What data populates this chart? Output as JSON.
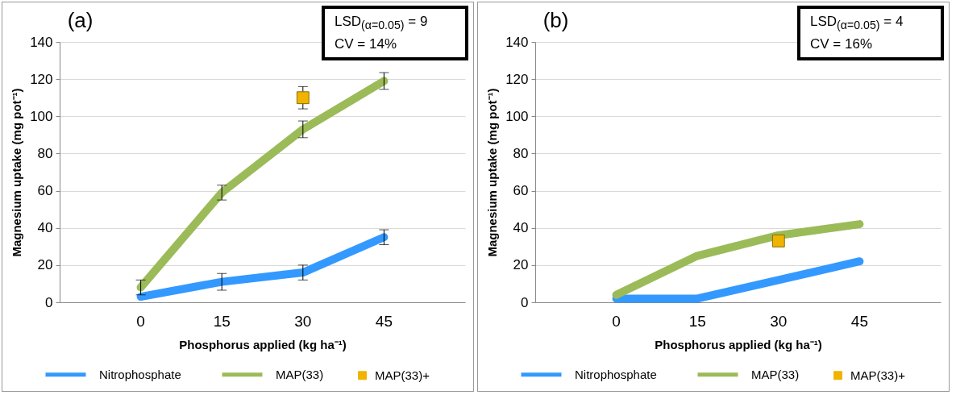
{
  "chart_data": [
    {
      "type": "line",
      "title": "(a)",
      "xlabel": "Phosphorus applied (kg ha⁻¹)",
      "ylabel": "Magnesium uptake (mg pot⁻¹)",
      "categories": [
        "0",
        "15",
        "30",
        "45"
      ],
      "ylim": [
        0,
        140
      ],
      "yticks": [
        0,
        20,
        40,
        60,
        80,
        100,
        120,
        140
      ],
      "grid": "y",
      "legend": "bottom",
      "line_style": "solid",
      "annotations": [
        "LSD$_{(α=0.05)}$ = 9",
        "CV = 14%"
      ],
      "series": [
        {
          "name": "Nitrophosphate",
          "color": "#3399ff",
          "values": [
            3,
            11,
            16,
            35
          ],
          "errors": [
            null,
            4.5,
            4,
            4
          ]
        },
        {
          "name": "MAP(33)",
          "color": "#9bbb59",
          "values": [
            8,
            59,
            93,
            119
          ],
          "errors": [
            4,
            4,
            4.5,
            4.5
          ]
        },
        {
          "name": "MAP(33)+",
          "type": "scatter",
          "marker": "square",
          "color": "#f0b400",
          "x": [
            "30"
          ],
          "values": [
            110
          ],
          "errors": [
            6
          ]
        }
      ]
    },
    {
      "type": "line",
      "title": "(b)",
      "xlabel": "Phosphorus applied (kg ha⁻¹)",
      "ylabel": "Magnesium uptake (mg pot⁻¹)",
      "categories": [
        "0",
        "15",
        "30",
        "45"
      ],
      "ylim": [
        0,
        140
      ],
      "yticks": [
        0,
        20,
        40,
        60,
        80,
        100,
        120,
        140
      ],
      "grid": "y",
      "legend": "bottom",
      "line_style": "solid",
      "annotations": [
        "LSD$_{(α=0.05)}$ = 4",
        "CV = 16%"
      ],
      "series": [
        {
          "name": "Nitrophosphate",
          "color": "#3399ff",
          "values": [
            2,
            2,
            12,
            22
          ]
        },
        {
          "name": "MAP(33)",
          "color": "#9bbb59",
          "values": [
            4,
            25,
            36,
            42
          ]
        },
        {
          "name": "MAP(33)+",
          "type": "scatter",
          "marker": "square",
          "color": "#f0b400",
          "x": [
            "30"
          ],
          "values": [
            33
          ]
        }
      ]
    }
  ]
}
